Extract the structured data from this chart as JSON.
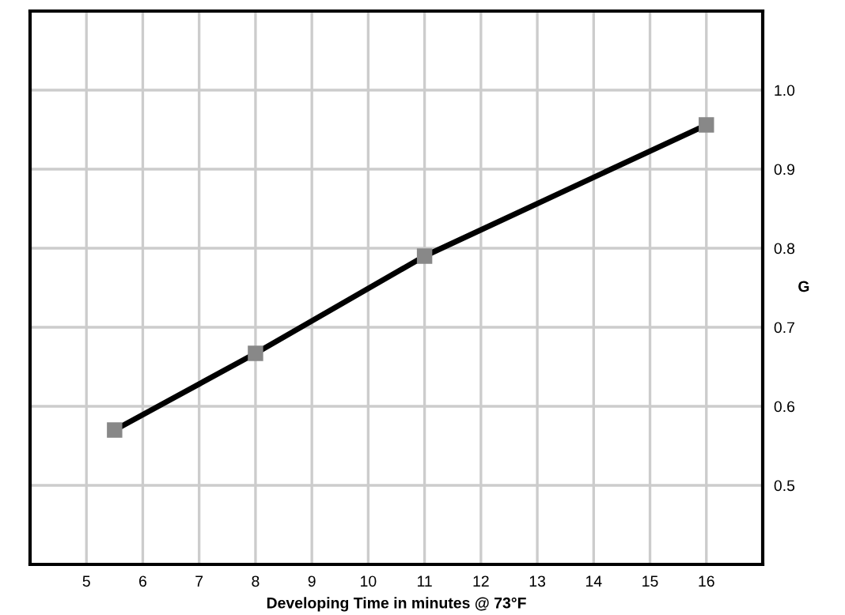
{
  "chart_data": {
    "type": "line",
    "xlabel": "Developing Time in minutes @ 73°F",
    "ylabel": "G",
    "x": [
      5.5,
      8,
      11,
      16
    ],
    "series": [
      {
        "color": "#000000",
        "values": [
          0.57,
          0.667,
          0.79,
          0.956
        ]
      }
    ],
    "xlim": [
      4,
      17
    ],
    "xticks": [
      5,
      6,
      7,
      8,
      9,
      10,
      11,
      12,
      13,
      14,
      15,
      16
    ],
    "ylim": [
      0.4,
      1.1
    ],
    "yticks": [
      {
        "value": 0.5,
        "label": "0.5"
      },
      {
        "value": 0.6,
        "label": "0.6"
      },
      {
        "value": 0.7,
        "label": "0.7"
      },
      {
        "value": 0.8,
        "label": "0.8"
      },
      {
        "value": 0.9,
        "label": "0.9"
      },
      {
        "value": 1.0,
        "label": "1.0"
      }
    ],
    "grid": true,
    "marker": "square",
    "line_style": "solid"
  }
}
